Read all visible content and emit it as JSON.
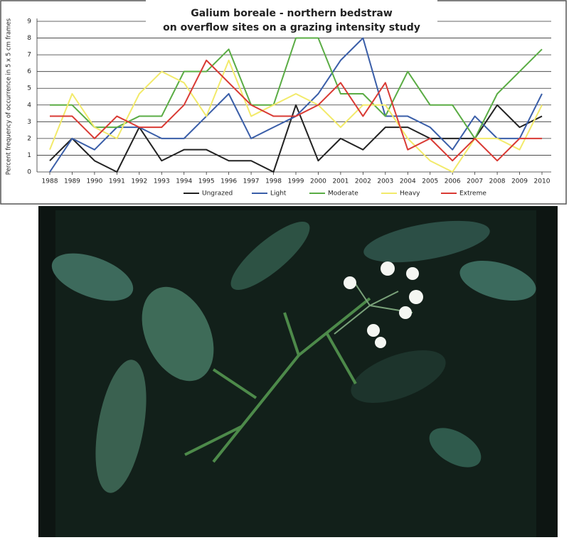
{
  "chart_data": {
    "type": "line",
    "title": "Galium boreale  -  northern bedstraw",
    "subtitle": "on overflow sites on a grazing intensity study",
    "ylabel": "Percent frequency of occurrence in 5 x 5 cm frames",
    "x": [
      1988,
      1989,
      1990,
      1991,
      1992,
      1993,
      1994,
      1995,
      1996,
      1997,
      1998,
      1999,
      2000,
      2001,
      2002,
      2003,
      2004,
      2005,
      2006,
      2007,
      2008,
      2009,
      2010
    ],
    "xlim": [
      1988,
      2010
    ],
    "ylim": [
      0,
      9
    ],
    "yticks": [
      0,
      1,
      2,
      3,
      4,
      5,
      6,
      7,
      8,
      9
    ],
    "grid": true,
    "legend": "bottom",
    "series": [
      {
        "name": "Ungrazed",
        "color": "#222222",
        "values": [
          0.67,
          2,
          0.67,
          0,
          2.67,
          0.67,
          1.33,
          1.33,
          0.67,
          0.67,
          0,
          4,
          0.67,
          2,
          1.33,
          2.67,
          2.67,
          2,
          2,
          2,
          4,
          2.67,
          3.33
        ]
      },
      {
        "name": "Light",
        "color": "#3a5ea8",
        "values": [
          0,
          2,
          1.33,
          2.67,
          2.67,
          2,
          2,
          3.33,
          4.67,
          2,
          2.67,
          3.33,
          4.67,
          6.67,
          8,
          3.33,
          3.33,
          2.67,
          1.33,
          3.33,
          2,
          2,
          4.67
        ]
      },
      {
        "name": "Moderate",
        "color": "#5aac44",
        "values": [
          4,
          4,
          2.67,
          2.67,
          3.33,
          3.33,
          6,
          6,
          7.33,
          4,
          4,
          8,
          8,
          4.67,
          4.67,
          3.33,
          6,
          4,
          4,
          2,
          4.67,
          6,
          7.33
        ]
      },
      {
        "name": "Heavy",
        "color": "#f2ea6a",
        "values": [
          1.33,
          4.67,
          2.67,
          2,
          4.67,
          6,
          5.33,
          3.33,
          6.67,
          3.33,
          4,
          4.67,
          4,
          2.67,
          4,
          4,
          2,
          0.67,
          0,
          2,
          2,
          1.33,
          4
        ]
      },
      {
        "name": "Extreme",
        "color": "#d93a34",
        "values": [
          3.33,
          3.33,
          2,
          3.33,
          2.67,
          2.67,
          4,
          6.67,
          5.33,
          4,
          3.33,
          3.33,
          4,
          5.33,
          3.33,
          5.33,
          1.33,
          2,
          0.67,
          2,
          0.67,
          2,
          2
        ]
      }
    ]
  }
}
